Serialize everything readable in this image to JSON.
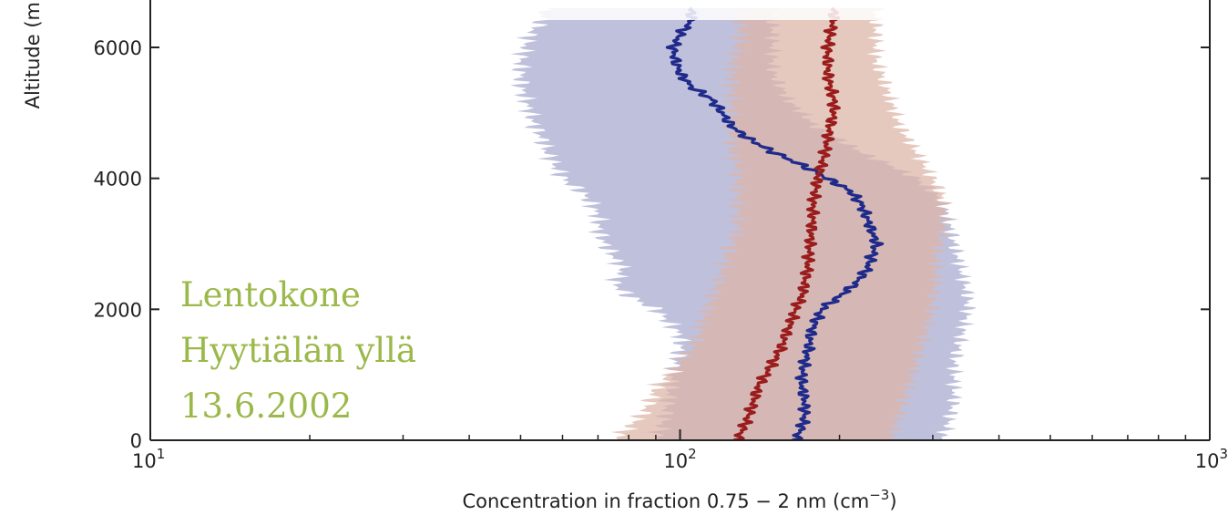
{
  "chart_data": {
    "type": "area",
    "xlabel_main": "Concentration in fraction 0.75 − 2 nm (cm",
    "xlabel_sup": "−3",
    "xlabel_tail": ")",
    "ylabel": "Altitude (m",
    "xscale": "log",
    "xlim": [
      10,
      1000
    ],
    "ylim": [
      0,
      6500
    ],
    "grid": false,
    "x_ticks": [
      {
        "base": "10",
        "exp": "1",
        "value": 10
      },
      {
        "base": "10",
        "exp": "2",
        "value": 100
      },
      {
        "base": "10",
        "exp": "3",
        "value": 1000
      }
    ],
    "y_ticks": [
      {
        "label": "0",
        "value": 0
      },
      {
        "label": "2000",
        "value": 2000
      },
      {
        "label": "4000",
        "value": 4000
      },
      {
        "label": "6000",
        "value": 6000
      }
    ],
    "series": [
      {
        "color": "#1f2a8a",
        "band_color": "#bfc0dc",
        "altitude": [
          0,
          200,
          400,
          600,
          800,
          1000,
          1200,
          1400,
          1600,
          1800,
          2000,
          2200,
          2400,
          2600,
          2800,
          3000,
          3200,
          3400,
          3600,
          3800,
          4000,
          4200,
          4400,
          4600,
          4800,
          5000,
          5200,
          5400,
          5600,
          5800,
          6000,
          6200,
          6400
        ],
        "median": [
          165,
          170,
          172,
          172,
          170,
          170,
          172,
          175,
          176,
          180,
          185,
          200,
          215,
          225,
          230,
          235,
          230,
          225,
          220,
          210,
          190,
          170,
          150,
          135,
          125,
          120,
          115,
          105,
          100,
          98,
          97,
          100,
          105
        ],
        "lower": [
          90,
          92,
          94,
          95,
          96,
          97,
          98,
          100,
          100,
          95,
          90,
          80,
          75,
          78,
          75,
          72,
          70,
          70,
          68,
          65,
          60,
          58,
          56,
          55,
          53,
          52,
          51,
          50,
          50,
          50,
          51,
          52,
          55
        ],
        "upper": [
          310,
          320,
          325,
          330,
          330,
          330,
          330,
          335,
          340,
          345,
          350,
          350,
          345,
          340,
          335,
          330,
          325,
          320,
          315,
          300,
          280,
          250,
          220,
          200,
          180,
          170,
          160,
          155,
          150,
          150,
          150,
          150,
          150
        ]
      },
      {
        "color": "#9a1c1c",
        "band_color": "#dcb6a8",
        "altitude": [
          0,
          200,
          400,
          600,
          800,
          1000,
          1200,
          1400,
          1600,
          1800,
          2000,
          2200,
          2400,
          2600,
          2800,
          3000,
          3200,
          3400,
          3600,
          3800,
          4000,
          4200,
          4400,
          4600,
          4800,
          5000,
          5200,
          5400,
          5600,
          5800,
          6000,
          6200,
          6400
        ],
        "median": [
          128,
          132,
          135,
          138,
          140,
          145,
          150,
          155,
          158,
          162,
          165,
          170,
          172,
          174,
          175,
          176,
          177,
          178,
          178,
          180,
          182,
          185,
          188,
          190,
          192,
          195,
          195,
          192,
          190,
          190,
          190,
          192,
          195
        ],
        "lower": [
          75,
          80,
          85,
          88,
          90,
          95,
          100,
          105,
          108,
          110,
          112,
          115,
          118,
          120,
          122,
          125,
          128,
          128,
          128,
          128,
          128,
          128,
          125,
          125,
          125,
          125,
          125,
          125,
          125,
          126,
          128,
          130,
          130
        ],
        "upper": [
          250,
          255,
          260,
          265,
          270,
          275,
          280,
          285,
          290,
          295,
          300,
          300,
          305,
          305,
          305,
          310,
          315,
          315,
          315,
          310,
          300,
          290,
          280,
          270,
          260,
          255,
          250,
          245,
          240,
          235,
          235,
          235,
          235
        ]
      }
    ]
  },
  "overlay": {
    "line1": "Lentokone",
    "line2": "Hyytiälän yllä",
    "line3": "13.6.2002"
  }
}
